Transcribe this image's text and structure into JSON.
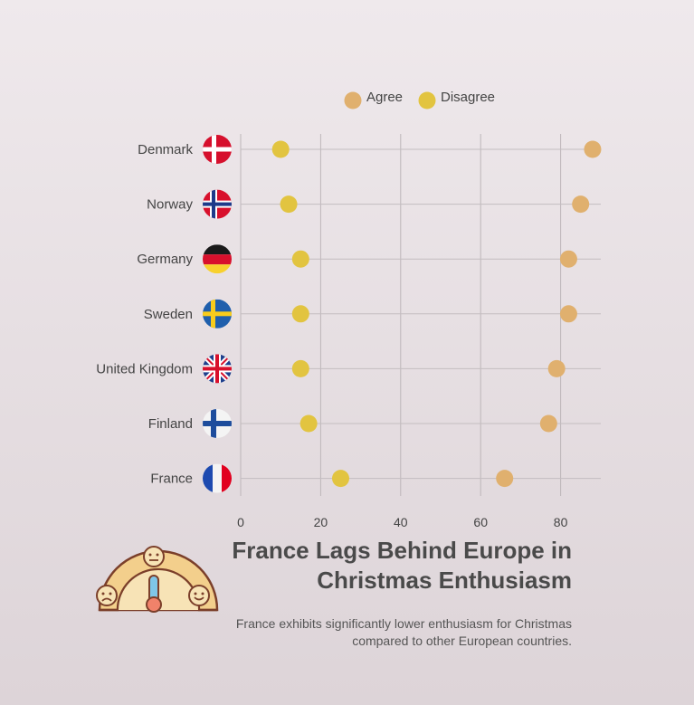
{
  "chart_data": {
    "type": "scatter",
    "title": "France Lags Behind Europe in Christmas Enthusiasm",
    "subtitle": "France exhibits significantly lower enthusiasm for Christmas compared to other European countries.",
    "categories": [
      "Denmark",
      "Norway",
      "Germany",
      "Sweden",
      "United Kingdom",
      "Finland",
      "France"
    ],
    "series": [
      {
        "name": "Agree",
        "color": "#e0b06e",
        "values": [
          88,
          85,
          82,
          82,
          79,
          77,
          66
        ]
      },
      {
        "name": "Disagree",
        "color": "#e2c440",
        "values": [
          10,
          12,
          15,
          15,
          15,
          17,
          25
        ]
      }
    ],
    "xlim": [
      0,
      90
    ],
    "xticks": [
      0,
      20,
      40,
      60,
      80
    ],
    "grid": true,
    "legend": "top",
    "flags": [
      "denmark-flag-icon",
      "norway-flag-icon",
      "germany-flag-icon",
      "sweden-flag-icon",
      "uk-flag-icon",
      "finland-flag-icon",
      "france-flag-icon"
    ]
  }
}
